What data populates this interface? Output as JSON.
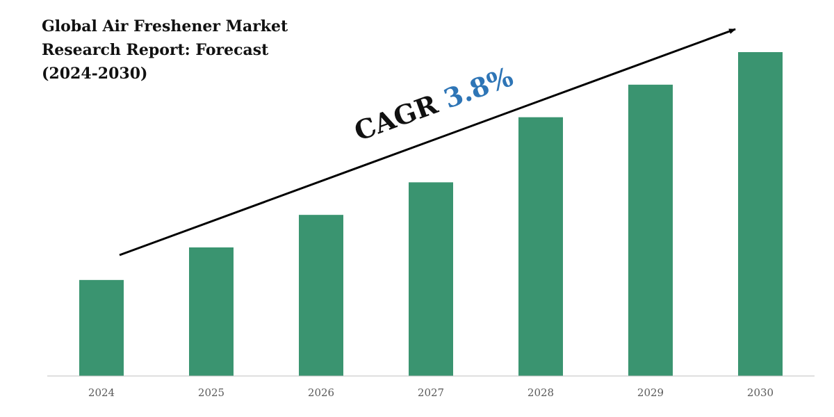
{
  "title_lines": [
    "Global Air Freshener Market",
    "Research Report: Forecast",
    "(2024-2030)"
  ],
  "cagr": {
    "label": "CAGR",
    "value": "3.8%",
    "label_color": "#111111",
    "value_color": "#2e75b6"
  },
  "colors": {
    "bar": "#3a9470",
    "axis": "#bfbfbf",
    "arrow": "#000000"
  },
  "chart_data": {
    "type": "bar",
    "title": "Global Air Freshener Market Research Report: Forecast (2024-2030)",
    "categories": [
      "2024",
      "2025",
      "2026",
      "2027",
      "2028",
      "2029",
      "2030"
    ],
    "values": [
      59,
      79,
      99,
      119,
      159,
      179,
      199
    ],
    "xlabel": "",
    "ylabel": "",
    "ylim": [
      0,
      210
    ],
    "grid": false,
    "legend": "none",
    "annotation": "CAGR 3.8%"
  }
}
